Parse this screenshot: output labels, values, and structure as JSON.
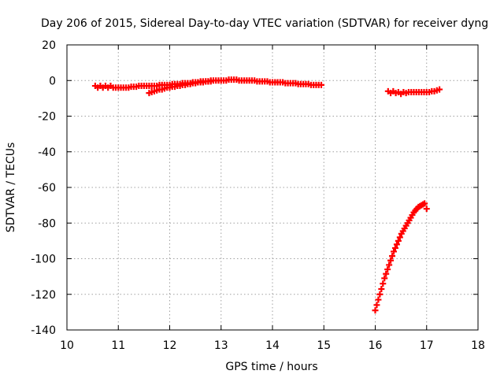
{
  "chart_data": {
    "type": "scatter",
    "title": "Day 206 of 2015, Sidereal Day-to-day VTEC variation (SDTVAR) for receiver dyng",
    "xlabel": "GPS time / hours",
    "ylabel": "SDTVAR / TECUs",
    "xlim": [
      10,
      18
    ],
    "ylim": [
      -140,
      20
    ],
    "xticks": [
      "10",
      "11",
      "12",
      "13",
      "14",
      "15",
      "16",
      "17",
      "18"
    ],
    "yticks": [
      "20",
      "0",
      "-20",
      "-40",
      "-60",
      "-80",
      "-100",
      "-120",
      "-140"
    ],
    "grid": true,
    "marker": "plus",
    "color": "#ff0000",
    "series": [
      {
        "values": [
          [
            10.55,
            -3
          ],
          [
            10.6,
            -4
          ],
          [
            10.65,
            -3
          ],
          [
            10.7,
            -4
          ],
          [
            10.75,
            -3
          ],
          [
            10.8,
            -4
          ],
          [
            10.85,
            -3
          ],
          [
            10.9,
            -4
          ],
          [
            10.95,
            -4
          ],
          [
            11.0,
            -4
          ],
          [
            11.05,
            -4
          ],
          [
            11.1,
            -4
          ],
          [
            11.15,
            -4
          ],
          [
            11.2,
            -4
          ],
          [
            11.25,
            -3.5
          ],
          [
            11.3,
            -3.5
          ],
          [
            11.35,
            -3.5
          ],
          [
            11.4,
            -3
          ],
          [
            11.45,
            -3
          ],
          [
            11.5,
            -3
          ],
          [
            11.55,
            -3
          ],
          [
            11.6,
            -3
          ],
          [
            11.65,
            -3
          ],
          [
            11.7,
            -3
          ],
          [
            11.75,
            -3
          ],
          [
            11.8,
            -2.5
          ],
          [
            11.85,
            -2.5
          ],
          [
            11.9,
            -2.5
          ],
          [
            11.95,
            -2.5
          ],
          [
            12.0,
            -2.5
          ],
          [
            12.05,
            -2
          ],
          [
            12.1,
            -2
          ],
          [
            12.15,
            -2
          ],
          [
            12.2,
            -2
          ],
          [
            12.25,
            -1.5
          ],
          [
            12.3,
            -1.5
          ],
          [
            12.35,
            -1.5
          ],
          [
            12.4,
            -1.5
          ],
          [
            12.45,
            -1
          ],
          [
            12.5,
            -1
          ],
          [
            12.55,
            -1
          ],
          [
            12.6,
            -0.5
          ],
          [
            12.65,
            -0.5
          ],
          [
            12.7,
            -0.5
          ],
          [
            12.75,
            -0.5
          ],
          [
            12.8,
            0
          ],
          [
            12.85,
            0
          ],
          [
            12.9,
            0
          ],
          [
            12.95,
            0
          ],
          [
            13.0,
            0
          ],
          [
            13.05,
            0
          ],
          [
            13.1,
            0
          ],
          [
            13.15,
            0.5
          ],
          [
            13.2,
            0.5
          ],
          [
            13.25,
            0.5
          ],
          [
            13.3,
            0.5
          ],
          [
            13.35,
            0
          ],
          [
            13.4,
            0
          ],
          [
            13.45,
            0
          ],
          [
            13.5,
            0
          ],
          [
            13.55,
            0
          ],
          [
            13.6,
            0
          ],
          [
            13.65,
            0
          ],
          [
            13.7,
            -0.5
          ],
          [
            13.75,
            -0.5
          ],
          [
            13.8,
            -0.5
          ],
          [
            13.85,
            -0.5
          ],
          [
            13.9,
            -0.5
          ],
          [
            13.95,
            -1
          ],
          [
            14.0,
            -1
          ],
          [
            14.05,
            -1
          ],
          [
            14.1,
            -1
          ],
          [
            14.15,
            -1
          ],
          [
            14.2,
            -1
          ],
          [
            14.25,
            -1.5
          ],
          [
            14.3,
            -1.5
          ],
          [
            14.35,
            -1.5
          ],
          [
            14.4,
            -1.5
          ],
          [
            14.45,
            -1.5
          ],
          [
            14.5,
            -2
          ],
          [
            14.55,
            -2
          ],
          [
            14.6,
            -2
          ],
          [
            14.65,
            -2
          ],
          [
            14.7,
            -2
          ],
          [
            14.75,
            -2.5
          ],
          [
            14.8,
            -2.5
          ],
          [
            14.85,
            -2.5
          ],
          [
            14.9,
            -2.5
          ],
          [
            14.95,
            -2.5
          ]
        ]
      },
      {
        "values": [
          [
            11.6,
            -7
          ],
          [
            11.65,
            -6.5
          ],
          [
            11.7,
            -6
          ],
          [
            11.75,
            -5.5
          ],
          [
            11.8,
            -5
          ],
          [
            11.85,
            -5
          ],
          [
            11.9,
            -4.5
          ],
          [
            11.95,
            -4
          ],
          [
            12.0,
            -4
          ],
          [
            12.05,
            -3.5
          ],
          [
            12.1,
            -3.5
          ],
          [
            12.15,
            -3
          ],
          [
            12.2,
            -3
          ],
          [
            12.25,
            -2.5
          ],
          [
            12.3,
            -2.5
          ],
          [
            12.35,
            -2
          ],
          [
            12.4,
            -2
          ],
          [
            12.45,
            -1.5
          ],
          [
            12.5,
            -1.5
          ],
          [
            12.55,
            -1
          ],
          [
            12.6,
            -1
          ],
          [
            12.65,
            -1
          ],
          [
            12.7,
            -0.5
          ],
          [
            12.75,
            -0.5
          ],
          [
            12.8,
            -0.5
          ]
        ]
      },
      {
        "values": [
          [
            16.25,
            -6
          ],
          [
            16.3,
            -7
          ],
          [
            16.35,
            -6
          ],
          [
            16.4,
            -7
          ],
          [
            16.45,
            -6.5
          ],
          [
            16.5,
            -7.5
          ],
          [
            16.55,
            -6.5
          ],
          [
            16.6,
            -7
          ],
          [
            16.65,
            -6.5
          ],
          [
            16.7,
            -6.5
          ],
          [
            16.75,
            -6.5
          ],
          [
            16.8,
            -6.5
          ],
          [
            16.85,
            -6.5
          ],
          [
            16.9,
            -6.5
          ],
          [
            16.95,
            -6.5
          ],
          [
            17.0,
            -6.5
          ],
          [
            17.05,
            -6.5
          ],
          [
            17.1,
            -6
          ],
          [
            17.15,
            -6
          ],
          [
            17.2,
            -5.5
          ],
          [
            17.25,
            -5
          ]
        ]
      },
      {
        "values": [
          [
            16.0,
            -129
          ],
          [
            16.03,
            -126
          ],
          [
            16.06,
            -123
          ],
          [
            16.09,
            -120
          ],
          [
            16.12,
            -117
          ],
          [
            16.15,
            -114
          ],
          [
            16.18,
            -111
          ],
          [
            16.21,
            -108.5
          ],
          [
            16.24,
            -106
          ],
          [
            16.27,
            -103.5
          ],
          [
            16.3,
            -101
          ],
          [
            16.33,
            -98.5
          ],
          [
            16.36,
            -96
          ],
          [
            16.39,
            -94
          ],
          [
            16.42,
            -92
          ],
          [
            16.45,
            -90
          ],
          [
            16.48,
            -88
          ],
          [
            16.51,
            -86
          ],
          [
            16.54,
            -84.5
          ],
          [
            16.57,
            -83
          ],
          [
            16.6,
            -81.5
          ],
          [
            16.63,
            -80
          ],
          [
            16.66,
            -78.5
          ],
          [
            16.69,
            -77
          ],
          [
            16.72,
            -75.5
          ],
          [
            16.75,
            -74
          ],
          [
            16.78,
            -73
          ],
          [
            16.81,
            -72
          ],
          [
            16.84,
            -71
          ],
          [
            16.87,
            -70.5
          ],
          [
            16.9,
            -70
          ],
          [
            16.93,
            -69.5
          ],
          [
            16.96,
            -69
          ],
          [
            17.0,
            -72
          ]
        ]
      }
    ]
  }
}
